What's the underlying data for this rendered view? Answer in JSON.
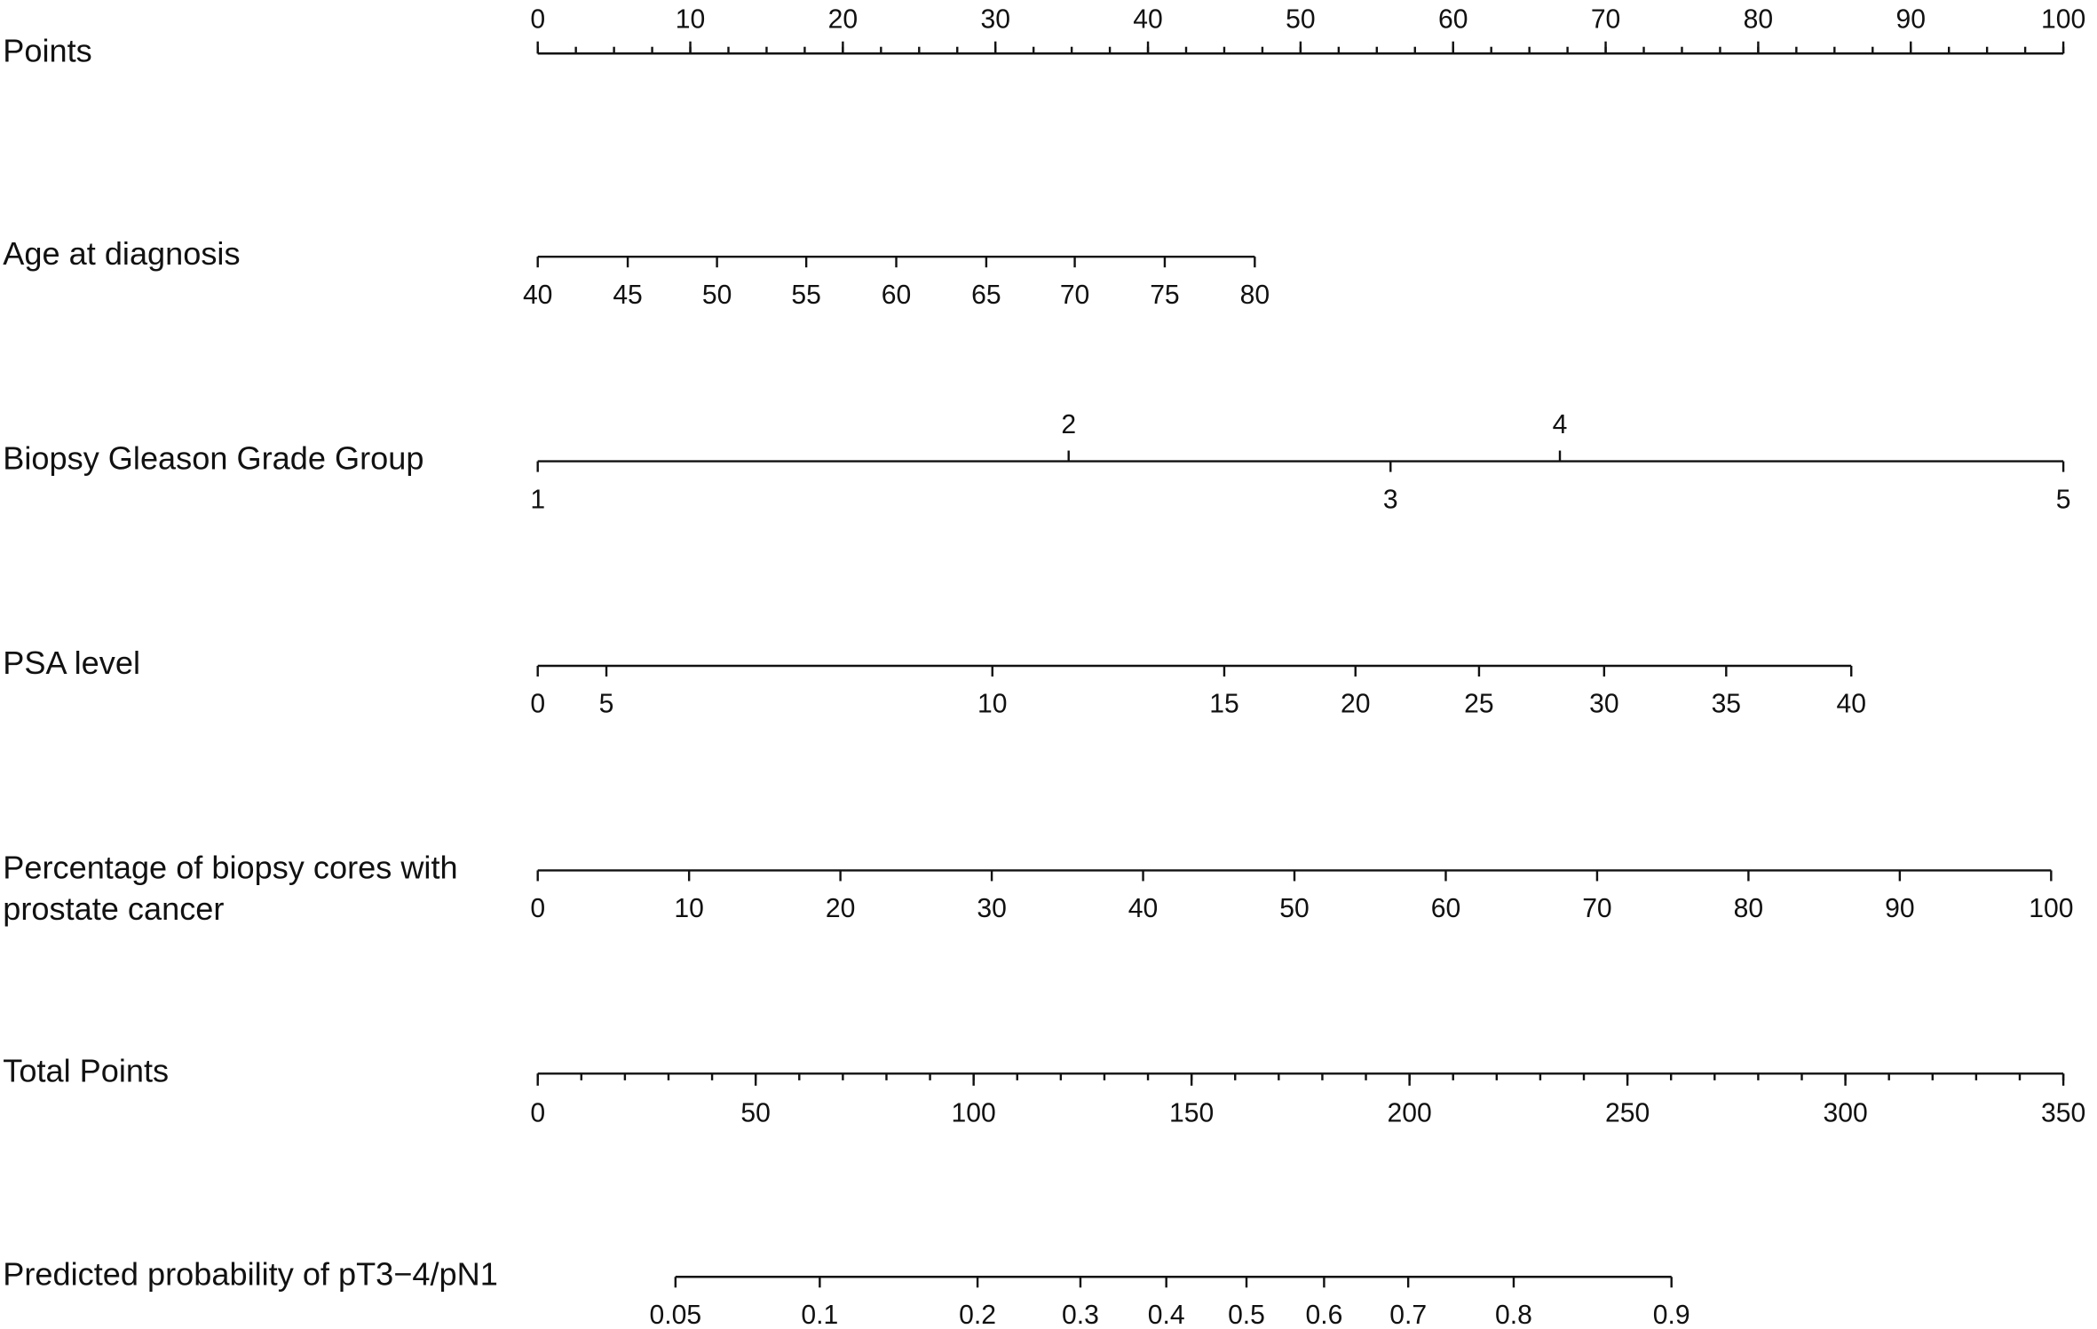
{
  "chart_data": {
    "type": "nomogram",
    "points_axis": {
      "label": "Points",
      "xlim": [
        0,
        100
      ],
      "ticks": [
        0,
        10,
        20,
        30,
        40,
        50,
        60,
        70,
        80,
        90,
        100
      ],
      "minor_ticks": [
        0,
        2.5,
        5,
        7.5,
        10,
        12.5,
        15,
        17.5,
        20,
        22.5,
        25,
        27.5,
        30,
        32.5,
        35,
        37.5,
        40,
        42.5,
        45,
        47.5,
        50,
        52.5,
        55,
        57.5,
        60,
        62.5,
        65,
        67.5,
        70,
        72.5,
        75,
        77.5,
        80,
        82.5,
        85,
        87.5,
        90,
        92.5,
        95,
        97.5,
        100
      ]
    },
    "variables": [
      {
        "label": "Age at diagnosis",
        "ticks": [
          40,
          45,
          50,
          55,
          60,
          65,
          70,
          75,
          80
        ],
        "points": [
          0,
          5.9,
          11.75,
          17.6,
          23.5,
          29.4,
          35.2,
          41.1,
          47
        ]
      },
      {
        "label": "Biopsy Gleason Grade Group",
        "ticks": [
          1,
          2,
          3,
          4,
          5
        ],
        "points": [
          0,
          34.8,
          55.9,
          67,
          100
        ],
        "tick_sides": [
          "below",
          "above",
          "below",
          "above",
          "below"
        ]
      },
      {
        "label": "PSA level",
        "ticks": [
          0,
          5,
          10,
          15,
          20,
          25,
          30,
          35,
          40
        ],
        "points": [
          0,
          4.5,
          29.8,
          45,
          53.6,
          61.7,
          69.9,
          77.9,
          86.1
        ]
      },
      {
        "label": "Percentage of biopsy cores with prostate cancer",
        "ticks": [
          0,
          10,
          20,
          30,
          40,
          50,
          60,
          70,
          80,
          90,
          100
        ],
        "points": [
          0,
          9.92,
          19.84,
          29.76,
          39.68,
          49.6,
          59.52,
          69.44,
          79.36,
          89.28,
          99.2
        ]
      }
    ],
    "total_axis": {
      "label": "Total Points",
      "xlim": [
        0,
        350
      ],
      "ticks": [
        0,
        50,
        100,
        150,
        200,
        250,
        300,
        350
      ],
      "minor_ticks": [
        0,
        10,
        20,
        30,
        40,
        50,
        60,
        70,
        80,
        90,
        100,
        110,
        120,
        130,
        140,
        150,
        160,
        170,
        180,
        190,
        200,
        210,
        220,
        230,
        240,
        250,
        260,
        270,
        280,
        290,
        300,
        310,
        320,
        330,
        340,
        350
      ]
    },
    "probability": {
      "label": "Predicted probability of pT3−4/pN1",
      "ticks": [
        0.05,
        0.1,
        0.2,
        0.3,
        0.4,
        0.5,
        0.6,
        0.7,
        0.8,
        0.9
      ],
      "total_points": [
        31.6,
        64.7,
        100.9,
        124.5,
        144.2,
        162.6,
        180.4,
        199.7,
        223.9,
        260.1
      ]
    }
  }
}
